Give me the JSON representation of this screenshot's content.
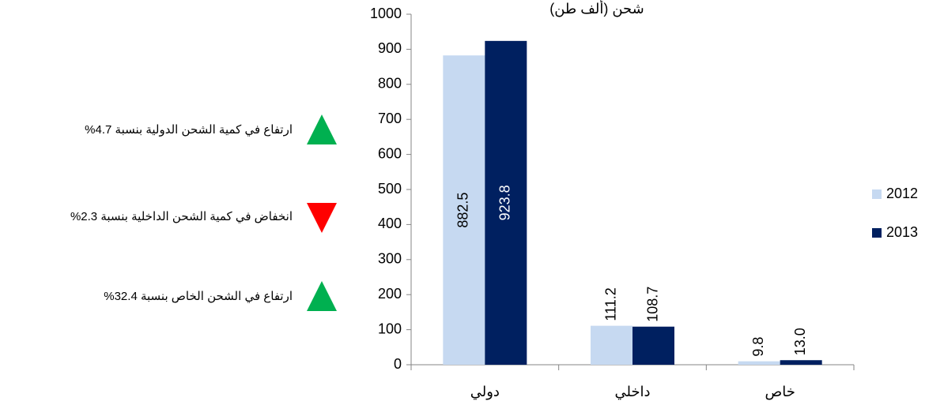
{
  "chart_data": {
    "type": "bar",
    "title": "شحن (ألف طن)",
    "categories": [
      "دولي",
      "داخلي",
      "خاص"
    ],
    "series": [
      {
        "name": "2012",
        "color": "#c6d9f1",
        "values": [
          882.5,
          111.2,
          9.8
        ],
        "value_labels": [
          "882.5",
          "111.2",
          "9.8"
        ]
      },
      {
        "name": "2013",
        "color": "#002060",
        "values": [
          923.8,
          108.7,
          13.0
        ],
        "value_labels": [
          "923.8",
          "108.7",
          "13.0"
        ]
      }
    ],
    "ylim": [
      0,
      1000
    ],
    "yticks": [
      0,
      100,
      200,
      300,
      400,
      500,
      600,
      700,
      800,
      900,
      1000
    ],
    "grid": false,
    "legend": "right",
    "annotations": [
      {
        "text": "ارتفاع في كمية الشحن الدولية بنسبة 4.7%",
        "direction": "up",
        "color": "#00b050"
      },
      {
        "text": "انخفاض في كمية الشحن الداخلية بنسبة 2.3%",
        "direction": "down",
        "color": "#ff0000"
      },
      {
        "text": "ارتفاع في الشحن الخاص بنسبة 32.4%",
        "direction": "up",
        "color": "#00b050"
      }
    ]
  }
}
